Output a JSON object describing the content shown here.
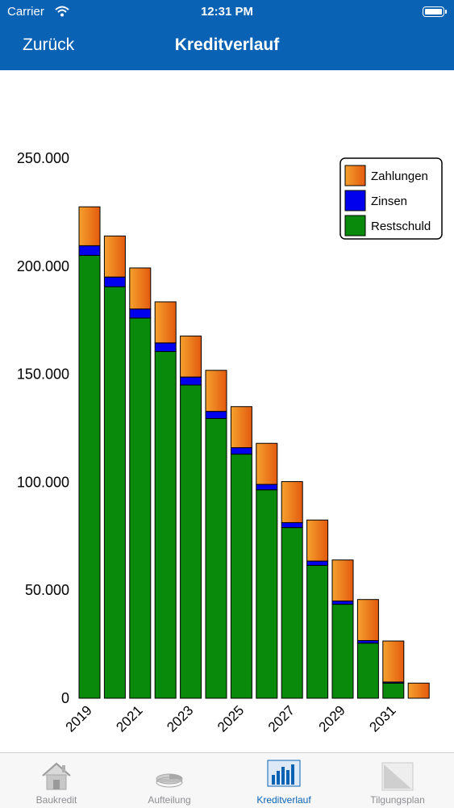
{
  "status_bar": {
    "carrier": "Carrier",
    "time": "12:31 PM"
  },
  "nav": {
    "back_label": "Zurück",
    "title": "Kreditverlauf"
  },
  "chart_data": {
    "type": "bar",
    "stacked": true,
    "categories": [
      "2019",
      "2020",
      "2021",
      "2022",
      "2023",
      "2024",
      "2025",
      "2026",
      "2027",
      "2028",
      "2029",
      "2030",
      "2031",
      "2032"
    ],
    "x_tick_labels": [
      "2019",
      "2021",
      "2023",
      "2025",
      "2027",
      "2029",
      "2031"
    ],
    "series": [
      {
        "name": "Restschuld",
        "color": "#0a8a0a",
        "values": [
          205000,
          190500,
          176000,
          160500,
          145000,
          129500,
          113000,
          96500,
          79000,
          61500,
          43500,
          25500,
          7000,
          0
        ]
      },
      {
        "name": "Zinsen",
        "color": "#0000ee",
        "values": [
          4500,
          4500,
          4200,
          4000,
          3700,
          3300,
          3000,
          2500,
          2300,
          2000,
          1500,
          1200,
          500,
          0
        ]
      },
      {
        "name": "Zahlungen",
        "color": "#ef7a18",
        "values": [
          18000,
          19000,
          19000,
          19000,
          19000,
          19000,
          19000,
          19000,
          19000,
          19000,
          19000,
          19000,
          19000,
          7000
        ]
      }
    ],
    "ylim": [
      0,
      250000
    ],
    "y_ticks": [
      0,
      50000,
      100000,
      150000,
      200000,
      250000
    ],
    "y_tick_labels": [
      "0",
      "50.000",
      "100.000",
      "150.000",
      "200.000",
      "250.000"
    ],
    "legend_order": [
      "Zahlungen",
      "Zinsen",
      "Restschuld"
    ],
    "legend_position": "top-right",
    "grid": false
  },
  "tabs": [
    {
      "label": "Baukredit",
      "icon": "house-icon"
    },
    {
      "label": "Aufteilung",
      "icon": "pie-chart-icon"
    },
    {
      "label": "Kreditverlauf",
      "icon": "bar-chart-icon",
      "active": true
    },
    {
      "label": "Tilgungsplan",
      "icon": "table-icon"
    }
  ],
  "colors": {
    "brand": "#0a62b4",
    "tab_active": "#0a62b4",
    "tab_inactive": "#8e8e93"
  }
}
